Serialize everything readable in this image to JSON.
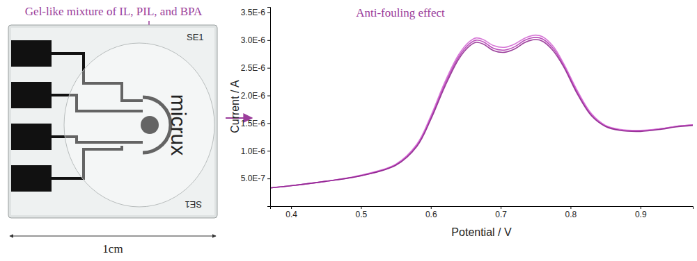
{
  "figure": {
    "gel_label": "Gel-like mixture of IL, PIL, and BPA",
    "electrode_text": [
      "SE1",
      "micrux",
      "SE1"
    ],
    "scale_label": "1cm"
  },
  "chart_data": {
    "type": "line",
    "annotation": "Anti-fouling effect",
    "x_label": "Potential / V",
    "y_label": "Current / A",
    "x": [
      0.37,
      0.4,
      0.45,
      0.5,
      0.55,
      0.58,
      0.6,
      0.62,
      0.64,
      0.655,
      0.665,
      0.675,
      0.69,
      0.705,
      0.72,
      0.735,
      0.75,
      0.76,
      0.775,
      0.79,
      0.81,
      0.83,
      0.85,
      0.87,
      0.9,
      0.93,
      0.95,
      0.975
    ],
    "series": [
      {
        "color": "#b030b0",
        "values": [
          3.3e-07,
          3.7e-07,
          4.5e-07,
          5.5e-07,
          7.5e-07,
          1.1e-06,
          1.6e-06,
          2.2e-06,
          2.7e-06,
          2.93e-06,
          3e-06,
          2.97e-06,
          2.85e-06,
          2.82e-06,
          2.88e-06,
          3e-06,
          3.05e-06,
          3.02e-06,
          2.85e-06,
          2.55e-06,
          2.05e-06,
          1.65e-06,
          1.45e-06,
          1.38e-06,
          1.36e-06,
          1.4e-06,
          1.44e-06,
          1.47e-06
        ]
      },
      {
        "color": "#d060d0",
        "values": [
          3.3e-07,
          3.7e-07,
          4.5e-07,
          5.6e-07,
          7.6e-07,
          1.12e-06,
          1.63e-06,
          2.24e-06,
          2.74e-06,
          2.97e-06,
          3.04e-06,
          3.01e-06,
          2.9e-06,
          2.87e-06,
          2.93e-06,
          3.04e-06,
          3.09e-06,
          3.06e-06,
          2.89e-06,
          2.58e-06,
          2.08e-06,
          1.67e-06,
          1.46e-06,
          1.39e-06,
          1.37e-06,
          1.4e-06,
          1.44e-06,
          1.47e-06
        ]
      },
      {
        "color": "#8a1f8a",
        "values": [
          3.3e-07,
          3.7e-07,
          4.5e-07,
          5.5e-07,
          7.4e-07,
          1.08e-06,
          1.57e-06,
          2.16e-06,
          2.66e-06,
          2.89e-06,
          2.96e-06,
          2.93e-06,
          2.81e-06,
          2.78e-06,
          2.84e-06,
          2.96e-06,
          3.01e-06,
          2.98e-06,
          2.81e-06,
          2.52e-06,
          2.02e-06,
          1.63e-06,
          1.44e-06,
          1.37e-06,
          1.35e-06,
          1.39e-06,
          1.43e-06,
          1.46e-06
        ]
      }
    ],
    "xlim": [
      0.37,
      0.975
    ],
    "xticks": [
      0.4,
      0.5,
      0.6,
      0.7,
      0.8,
      0.9
    ],
    "ylim": [
      0,
      3.6e-06
    ],
    "yticks": [
      {
        "value": 5e-07,
        "label": "5.0E-7"
      },
      {
        "value": 1e-06,
        "label": "1.0E-6"
      },
      {
        "value": 1.5e-06,
        "label": "1.5E-6"
      },
      {
        "value": 2e-06,
        "label": "2.0E-6"
      },
      {
        "value": 2.5e-06,
        "label": "2.5E-6"
      },
      {
        "value": 3e-06,
        "label": "3.0E-6"
      },
      {
        "value": 3.5e-06,
        "label": "3.5E-6"
      }
    ],
    "grid": false
  }
}
